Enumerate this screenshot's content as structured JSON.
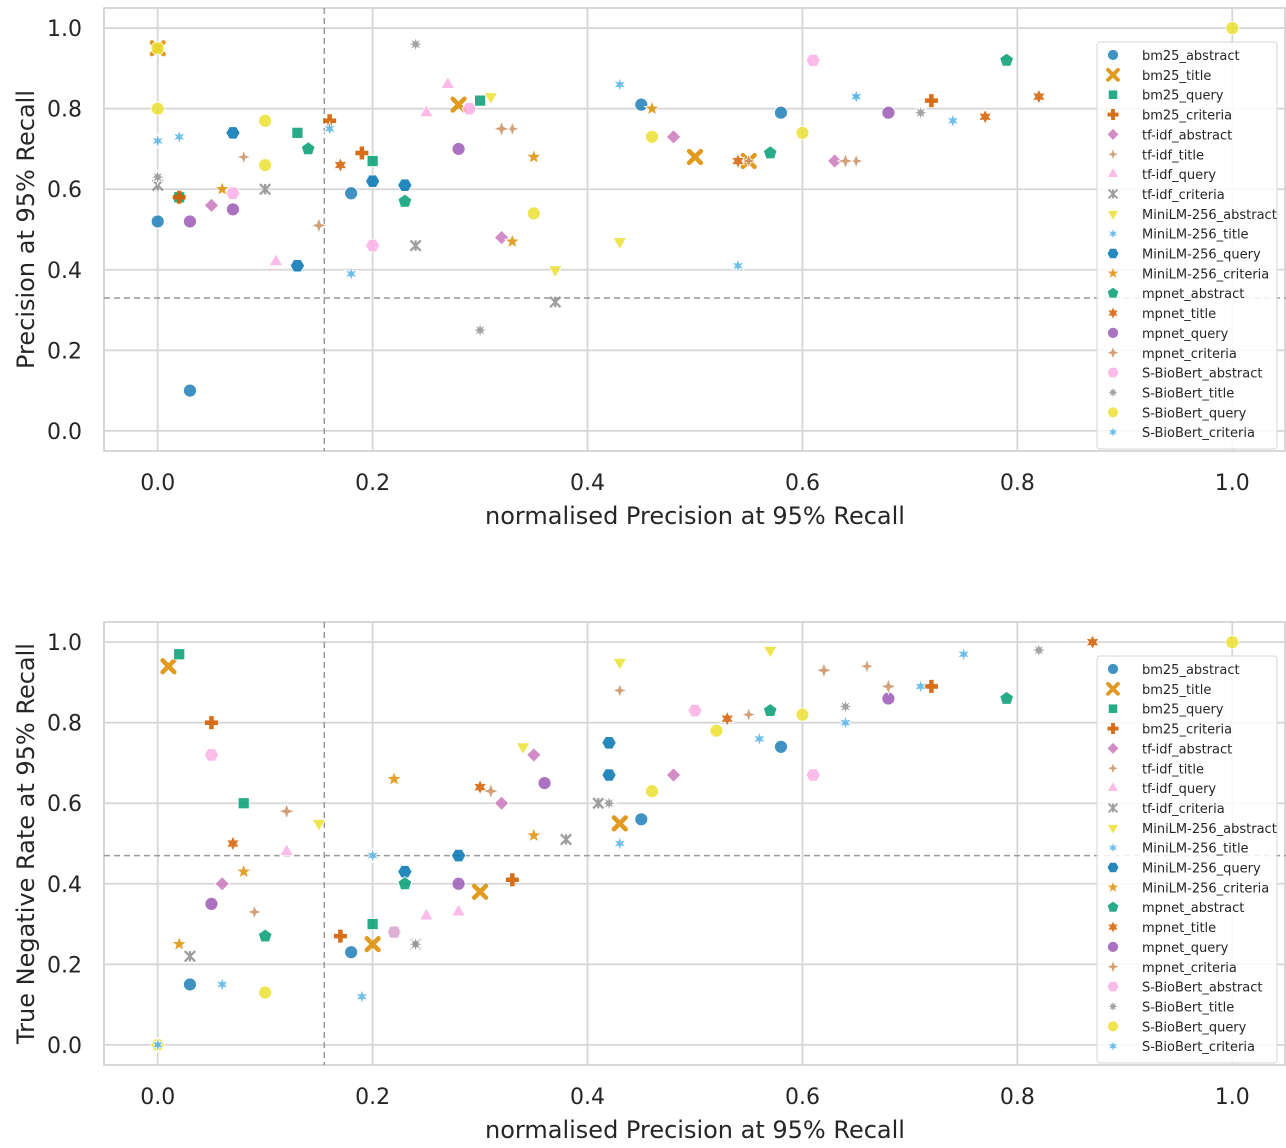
{
  "chart_data": [
    {
      "type": "scatter",
      "title": "",
      "xlabel": "normalised Precision at 95% Recall",
      "ylabel": "Precision at 95% Recall",
      "xlim": [
        -0.05,
        1.05
      ],
      "ylim": [
        -0.05,
        1.05
      ],
      "xticks": [
        "0.0",
        "0.2",
        "0.4",
        "0.6",
        "0.8",
        "1.0"
      ],
      "yticks": [
        "0.0",
        "0.2",
        "0.4",
        "0.6",
        "0.8",
        "1.0"
      ],
      "grid": true,
      "legend_position": "right",
      "reference_lines": {
        "vertical_x": 0.155,
        "horizontal_y": 0.33
      },
      "series": [
        {
          "name": "bm25_abstract",
          "values": [
            [
              0.0,
              0.52
            ],
            [
              0.18,
              0.59
            ],
            [
              0.45,
              0.81
            ],
            [
              0.58,
              0.79
            ],
            [
              0.03,
              0.1
            ]
          ]
        },
        {
          "name": "bm25_title",
          "values": [
            [
              0.0,
              0.95
            ],
            [
              0.28,
              0.81
            ],
            [
              0.5,
              0.68
            ],
            [
              0.55,
              0.67
            ]
          ]
        },
        {
          "name": "bm25_query",
          "values": [
            [
              0.13,
              0.74
            ],
            [
              0.2,
              0.67
            ],
            [
              0.3,
              0.82
            ],
            [
              0.02,
              0.58
            ]
          ]
        },
        {
          "name": "bm25_criteria",
          "values": [
            [
              0.16,
              0.77
            ],
            [
              0.19,
              0.69
            ],
            [
              0.02,
              0.58
            ],
            [
              0.72,
              0.82
            ]
          ]
        },
        {
          "name": "tf-idf_abstract",
          "values": [
            [
              0.05,
              0.56
            ],
            [
              0.32,
              0.48
            ],
            [
              0.48,
              0.73
            ],
            [
              0.63,
              0.67
            ]
          ]
        },
        {
          "name": "tf-idf_title",
          "values": [
            [
              0.08,
              0.68
            ],
            [
              0.33,
              0.75
            ],
            [
              0.55,
              0.67
            ],
            [
              0.65,
              0.67
            ]
          ]
        },
        {
          "name": "tf-idf_query",
          "values": [
            [
              0.27,
              0.86
            ],
            [
              0.25,
              0.79
            ],
            [
              0.11,
              0.42
            ]
          ]
        },
        {
          "name": "tf-idf_criteria",
          "values": [
            [
              0.0,
              0.61
            ],
            [
              0.1,
              0.6
            ],
            [
              0.24,
              0.46
            ],
            [
              0.37,
              0.32
            ]
          ]
        },
        {
          "name": "MiniLM-256_abstract",
          "values": [
            [
              0.31,
              0.83
            ],
            [
              0.43,
              0.47
            ],
            [
              0.37,
              0.4
            ]
          ]
        },
        {
          "name": "MiniLM-256_title",
          "values": [
            [
              0.02,
              0.73
            ],
            [
              0.16,
              0.75
            ],
            [
              0.65,
              0.83
            ],
            [
              0.54,
              0.41
            ]
          ]
        },
        {
          "name": "MiniLM-256_query",
          "values": [
            [
              0.2,
              0.62
            ],
            [
              0.23,
              0.61
            ],
            [
              0.07,
              0.74
            ],
            [
              0.13,
              0.41
            ]
          ]
        },
        {
          "name": "MiniLM-256_criteria",
          "values": [
            [
              0.06,
              0.6
            ],
            [
              0.35,
              0.68
            ],
            [
              0.46,
              0.8
            ],
            [
              0.33,
              0.47
            ]
          ]
        },
        {
          "name": "mpnet_abstract",
          "values": [
            [
              0.79,
              0.92
            ],
            [
              0.57,
              0.69
            ],
            [
              0.23,
              0.57
            ],
            [
              0.14,
              0.7
            ]
          ]
        },
        {
          "name": "mpnet_title",
          "values": [
            [
              0.17,
              0.66
            ],
            [
              0.54,
              0.67
            ],
            [
              0.82,
              0.83
            ],
            [
              0.77,
              0.78
            ]
          ]
        },
        {
          "name": "mpnet_query",
          "values": [
            [
              0.07,
              0.55
            ],
            [
              0.28,
              0.7
            ],
            [
              0.68,
              0.79
            ],
            [
              0.03,
              0.52
            ]
          ]
        },
        {
          "name": "mpnet_criteria",
          "values": [
            [
              0.32,
              0.75
            ],
            [
              0.64,
              0.67
            ],
            [
              0.89,
              0.88
            ],
            [
              0.15,
              0.51
            ]
          ]
        },
        {
          "name": "S-BioBert_abstract",
          "values": [
            [
              0.61,
              0.92
            ],
            [
              0.29,
              0.8
            ],
            [
              0.07,
              0.59
            ],
            [
              0.2,
              0.46
            ]
          ]
        },
        {
          "name": "S-BioBert_title",
          "values": [
            [
              0.0,
              0.63
            ],
            [
              0.24,
              0.96
            ],
            [
              0.71,
              0.79
            ],
            [
              0.3,
              0.25
            ]
          ]
        },
        {
          "name": "S-BioBert_query",
          "values": [
            [
              0.0,
              0.95
            ],
            [
              0.0,
              0.8
            ],
            [
              0.1,
              0.77
            ],
            [
              0.46,
              0.73
            ],
            [
              0.6,
              0.74
            ],
            [
              0.1,
              0.66
            ],
            [
              1.0,
              1.0
            ],
            [
              0.35,
              0.54
            ]
          ]
        },
        {
          "name": "S-BioBert_criteria",
          "values": [
            [
              0.0,
              0.72
            ],
            [
              0.43,
              0.86
            ],
            [
              0.65,
              0.83
            ],
            [
              0.74,
              0.77
            ],
            [
              0.18,
              0.39
            ]
          ]
        }
      ]
    },
    {
      "type": "scatter",
      "title": "",
      "xlabel": "normalised Precision at 95% Recall",
      "ylabel": "True Negative Rate at 95% Recall",
      "xlim": [
        -0.05,
        1.05
      ],
      "ylim": [
        -0.05,
        1.05
      ],
      "xticks": [
        "0.0",
        "0.2",
        "0.4",
        "0.6",
        "0.8",
        "1.0"
      ],
      "yticks": [
        "0.0",
        "0.2",
        "0.4",
        "0.6",
        "0.8",
        "1.0"
      ],
      "grid": true,
      "legend_position": "right",
      "reference_lines": {
        "vertical_x": 0.155,
        "horizontal_y": 0.47
      },
      "series": [
        {
          "name": "bm25_abstract",
          "values": [
            [
              0.58,
              0.74
            ],
            [
              0.45,
              0.56
            ],
            [
              0.18,
              0.23
            ],
            [
              0.03,
              0.15
            ]
          ]
        },
        {
          "name": "bm25_title",
          "values": [
            [
              0.43,
              0.55
            ],
            [
              0.2,
              0.25
            ],
            [
              0.3,
              0.38
            ],
            [
              0.01,
              0.94
            ]
          ]
        },
        {
          "name": "bm25_query",
          "values": [
            [
              0.2,
              0.3
            ],
            [
              0.22,
              0.28
            ],
            [
              0.02,
              0.97
            ],
            [
              0.08,
              0.6
            ]
          ]
        },
        {
          "name": "bm25_criteria",
          "values": [
            [
              0.17,
              0.27
            ],
            [
              0.72,
              0.89
            ],
            [
              0.33,
              0.41
            ],
            [
              0.05,
              0.8
            ]
          ]
        },
        {
          "name": "tf-idf_abstract",
          "values": [
            [
              0.48,
              0.67
            ],
            [
              0.32,
              0.6
            ],
            [
              0.35,
              0.72
            ],
            [
              0.06,
              0.4
            ]
          ]
        },
        {
          "name": "tf-idf_title",
          "values": [
            [
              0.66,
              0.94
            ],
            [
              0.43,
              0.88
            ],
            [
              0.55,
              0.82
            ],
            [
              0.09,
              0.33
            ]
          ]
        },
        {
          "name": "tf-idf_query",
          "values": [
            [
              0.25,
              0.32
            ],
            [
              0.28,
              0.33
            ],
            [
              0.12,
              0.48
            ]
          ]
        },
        {
          "name": "tf-idf_criteria",
          "values": [
            [
              0.41,
              0.6
            ],
            [
              0.24,
              0.25
            ],
            [
              0.38,
              0.51
            ],
            [
              0.03,
              0.22
            ]
          ]
        },
        {
          "name": "MiniLM-256_abstract",
          "values": [
            [
              0.43,
              0.95
            ],
            [
              0.34,
              0.74
            ],
            [
              0.57,
              0.98
            ],
            [
              0.15,
              0.55
            ]
          ]
        },
        {
          "name": "MiniLM-256_title",
          "values": [
            [
              0.56,
              0.76
            ],
            [
              0.71,
              0.89
            ],
            [
              0.2,
              0.47
            ],
            [
              0.06,
              0.15
            ]
          ]
        },
        {
          "name": "MiniLM-256_query",
          "values": [
            [
              0.42,
              0.75
            ],
            [
              0.42,
              0.67
            ],
            [
              0.28,
              0.47
            ],
            [
              0.23,
              0.43
            ]
          ]
        },
        {
          "name": "MiniLM-256_criteria",
          "values": [
            [
              0.35,
              0.52
            ],
            [
              0.22,
              0.66
            ],
            [
              0.08,
              0.43
            ],
            [
              0.02,
              0.25
            ]
          ]
        },
        {
          "name": "mpnet_abstract",
          "values": [
            [
              0.79,
              0.86
            ],
            [
              0.57,
              0.83
            ],
            [
              0.23,
              0.4
            ],
            [
              0.1,
              0.27
            ]
          ]
        },
        {
          "name": "mpnet_title",
          "values": [
            [
              0.53,
              0.81
            ],
            [
              0.87,
              1.0
            ],
            [
              0.3,
              0.64
            ],
            [
              0.07,
              0.5
            ]
          ]
        },
        {
          "name": "mpnet_query",
          "values": [
            [
              0.68,
              0.86
            ],
            [
              0.28,
              0.4
            ],
            [
              0.36,
              0.65
            ],
            [
              0.05,
              0.35
            ]
          ]
        },
        {
          "name": "mpnet_criteria",
          "values": [
            [
              0.68,
              0.89
            ],
            [
              0.62,
              0.93
            ],
            [
              0.31,
              0.63
            ],
            [
              0.12,
              0.58
            ]
          ]
        },
        {
          "name": "S-BioBert_abstract",
          "values": [
            [
              0.61,
              0.67
            ],
            [
              0.22,
              0.28
            ],
            [
              0.5,
              0.83
            ],
            [
              0.05,
              0.72
            ]
          ]
        },
        {
          "name": "S-BioBert_title",
          "values": [
            [
              0.42,
              0.6
            ],
            [
              0.24,
              0.25
            ],
            [
              0.64,
              0.84
            ],
            [
              0.82,
              0.98
            ]
          ]
        },
        {
          "name": "S-BioBert_query",
          "values": [
            [
              0.46,
              0.63
            ],
            [
              0.6,
              0.82
            ],
            [
              0.1,
              0.13
            ],
            [
              0.0,
              0.0
            ],
            [
              1.0,
              1.0
            ],
            [
              0.52,
              0.78
            ]
          ]
        },
        {
          "name": "S-BioBert_criteria",
          "values": [
            [
              0.0,
              0.0
            ],
            [
              0.64,
              0.8
            ],
            [
              0.43,
              0.5
            ],
            [
              0.75,
              0.97
            ],
            [
              0.19,
              0.12
            ]
          ]
        }
      ]
    }
  ],
  "colors": {
    "bm25_abstract": "#1f7fb8",
    "bm25_title": "#de8f05",
    "bm25_query": "#029e73",
    "bm25_criteria": "#d55e00",
    "tf-idf_abstract": "#cc78bc",
    "tf-idf_title": "#ca9161",
    "tf-idf_query": "#fbafe4",
    "tf-idf_criteria": "#949494",
    "MiniLM-256_abstract": "#ece133",
    "MiniLM-256_title": "#56b4e9",
    "MiniLM-256_query": "#0173b2",
    "MiniLM-256_criteria": "#de8f05",
    "mpnet_abstract": "#029e73",
    "mpnet_title": "#d55e00",
    "mpnet_query": "#9b59b6",
    "mpnet_criteria": "#ca9161",
    "S-BioBert_abstract": "#fbafe4",
    "S-BioBert_title": "#949494",
    "S-BioBert_query": "#ece133",
    "S-BioBert_criteria": "#56b4e9"
  },
  "markers": {
    "bm25_abstract": "circle",
    "bm25_title": "x",
    "bm25_query": "square",
    "bm25_criteria": "plus",
    "tf-idf_abstract": "diamond",
    "tf-idf_title": "thin-diamond",
    "tf-idf_query": "triangle-up",
    "tf-idf_criteria": "x-thin",
    "MiniLM-256_abstract": "triangle-down",
    "MiniLM-256_title": "star6",
    "MiniLM-256_query": "hexagon",
    "MiniLM-256_criteria": "star5",
    "mpnet_abstract": "pentagon",
    "mpnet_title": "star6-bold",
    "mpnet_query": "circle",
    "mpnet_criteria": "star4",
    "S-BioBert_abstract": "hexagon",
    "S-BioBert_title": "star8",
    "S-BioBert_query": "circle",
    "S-BioBert_criteria": "star6"
  }
}
